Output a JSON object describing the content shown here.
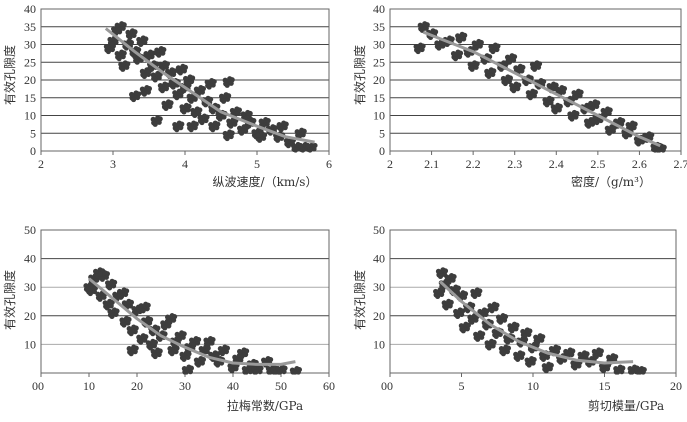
{
  "chart_data": [
    {
      "type": "scatter",
      "xlabel": "纵波速度/（km/s）",
      "ylabel": "有效孔隙度",
      "xlim": [
        2,
        6
      ],
      "ylim": [
        0,
        40
      ],
      "xticks": [
        "2",
        "3",
        "4",
        "5",
        "6"
      ],
      "yticks": [
        "0",
        "5",
        "10",
        "15",
        "20",
        "25",
        "30",
        "35",
        "40"
      ],
      "grid": true,
      "trend": [
        [
          2.9,
          34.5
        ],
        [
          3.3,
          28
        ],
        [
          3.7,
          22
        ],
        [
          4.1,
          16.5
        ],
        [
          4.5,
          11
        ],
        [
          5,
          7
        ],
        [
          5.4,
          4
        ],
        [
          5.8,
          2.5
        ]
      ],
      "points": [
        [
          2.95,
          29
        ],
        [
          3.0,
          31
        ],
        [
          3.05,
          34
        ],
        [
          3.1,
          35
        ],
        [
          3.1,
          27
        ],
        [
          3.15,
          24
        ],
        [
          3.2,
          30
        ],
        [
          3.25,
          33
        ],
        [
          3.3,
          15.5
        ],
        [
          3.3,
          28
        ],
        [
          3.35,
          26
        ],
        [
          3.4,
          31
        ],
        [
          3.45,
          17
        ],
        [
          3.45,
          22
        ],
        [
          3.5,
          27
        ],
        [
          3.55,
          24
        ],
        [
          3.6,
          8.5
        ],
        [
          3.6,
          21
        ],
        [
          3.65,
          28
        ],
        [
          3.7,
          18
        ],
        [
          3.7,
          24
        ],
        [
          3.75,
          13
        ],
        [
          3.8,
          22
        ],
        [
          3.85,
          19
        ],
        [
          3.9,
          7
        ],
        [
          3.9,
          16
        ],
        [
          3.95,
          23
        ],
        [
          4.0,
          12
        ],
        [
          4.0,
          18
        ],
        [
          4.05,
          20
        ],
        [
          4.1,
          7
        ],
        [
          4.1,
          15
        ],
        [
          4.15,
          11
        ],
        [
          4.2,
          17
        ],
        [
          4.25,
          9
        ],
        [
          4.3,
          14
        ],
        [
          4.35,
          19
        ],
        [
          4.4,
          7
        ],
        [
          4.4,
          12
        ],
        [
          4.5,
          10
        ],
        [
          4.55,
          15
        ],
        [
          4.6,
          19.5
        ],
        [
          4.6,
          4.5
        ],
        [
          4.65,
          8
        ],
        [
          4.7,
          11
        ],
        [
          4.8,
          6
        ],
        [
          4.85,
          10
        ],
        [
          4.9,
          8
        ],
        [
          5.0,
          5
        ],
        [
          5.05,
          4
        ],
        [
          5.1,
          8
        ],
        [
          5.2,
          6
        ],
        [
          5.3,
          4
        ],
        [
          5.35,
          7
        ],
        [
          5.45,
          2.5
        ],
        [
          5.55,
          1
        ],
        [
          5.6,
          5
        ],
        [
          5.65,
          1
        ],
        [
          5.75,
          1
        ]
      ]
    },
    {
      "type": "scatter",
      "xlabel": "密度/（g/m³）",
      "ylabel": "有效孔隙度",
      "xlim": [
        2,
        2.7
      ],
      "ylim": [
        0,
        40
      ],
      "xticks": [
        "2",
        "2.1",
        "2.2",
        "2.3",
        "2.4",
        "2.5",
        "2.6",
        "2.7"
      ],
      "yticks": [
        "0",
        "5",
        "10",
        "15",
        "20",
        "25",
        "30",
        "35",
        "40"
      ],
      "grid": true,
      "trend": [
        [
          2.08,
          33.5
        ],
        [
          2.2,
          28
        ],
        [
          2.3,
          22
        ],
        [
          2.4,
          16
        ],
        [
          2.5,
          10
        ],
        [
          2.6,
          4
        ],
        [
          2.65,
          1.5
        ]
      ],
      "points": [
        [
          2.07,
          29
        ],
        [
          2.08,
          35
        ],
        [
          2.1,
          33
        ],
        [
          2.12,
          30
        ],
        [
          2.14,
          31
        ],
        [
          2.16,
          27
        ],
        [
          2.17,
          32
        ],
        [
          2.19,
          28
        ],
        [
          2.2,
          24
        ],
        [
          2.21,
          30
        ],
        [
          2.23,
          26
        ],
        [
          2.24,
          22
        ],
        [
          2.25,
          29
        ],
        [
          2.27,
          24
        ],
        [
          2.28,
          20
        ],
        [
          2.29,
          26
        ],
        [
          2.3,
          18
        ],
        [
          2.31,
          23
        ],
        [
          2.33,
          20
        ],
        [
          2.34,
          16
        ],
        [
          2.35,
          24
        ],
        [
          2.36,
          19
        ],
        [
          2.38,
          14
        ],
        [
          2.39,
          18
        ],
        [
          2.4,
          12
        ],
        [
          2.41,
          17
        ],
        [
          2.43,
          14
        ],
        [
          2.44,
          10
        ],
        [
          2.45,
          16
        ],
        [
          2.47,
          12
        ],
        [
          2.48,
          8
        ],
        [
          2.49,
          13
        ],
        [
          2.5,
          9
        ],
        [
          2.52,
          11
        ],
        [
          2.53,
          6
        ],
        [
          2.55,
          8
        ],
        [
          2.57,
          5
        ],
        [
          2.58,
          7
        ],
        [
          2.6,
          3
        ],
        [
          2.62,
          4
        ],
        [
          2.64,
          1
        ],
        [
          2.65,
          0.5
        ]
      ]
    },
    {
      "type": "scatter",
      "xlabel": "拉梅常数/GPa",
      "ylabel": "有效孔隙度",
      "xlim": [
        0,
        60
      ],
      "ylim": [
        0,
        50
      ],
      "xticks": [
        "0",
        "10",
        "20",
        "30",
        "40",
        "50",
        "60"
      ],
      "yticks": [
        "10",
        "20",
        "30",
        "40",
        "50"
      ],
      "grid": true,
      "trend": [
        [
          10,
          33
        ],
        [
          15,
          26
        ],
        [
          20,
          19
        ],
        [
          25,
          13
        ],
        [
          30,
          9
        ],
        [
          35,
          5.5
        ],
        [
          40,
          3.5
        ],
        [
          45,
          3
        ],
        [
          50,
          3
        ],
        [
          53,
          4
        ]
      ],
      "points": [
        [
          10,
          30
        ],
        [
          10.5,
          29
        ],
        [
          11,
          33
        ],
        [
          12,
          35
        ],
        [
          12.5,
          27
        ],
        [
          13,
          34
        ],
        [
          14,
          24
        ],
        [
          14.5,
          31
        ],
        [
          15,
          21
        ],
        [
          16,
          27
        ],
        [
          17,
          28
        ],
        [
          17.5,
          18
        ],
        [
          18,
          24
        ],
        [
          19,
          8
        ],
        [
          19,
          15
        ],
        [
          20,
          22
        ],
        [
          21,
          12
        ],
        [
          21.5,
          23
        ],
        [
          22,
          18
        ],
        [
          23,
          10
        ],
        [
          23.5,
          15
        ],
        [
          24,
          7
        ],
        [
          25,
          13
        ],
        [
          26,
          17
        ],
        [
          27,
          19
        ],
        [
          27.5,
          8
        ],
        [
          28,
          11
        ],
        [
          29,
          13
        ],
        [
          30,
          6
        ],
        [
          30.5,
          1
        ],
        [
          31,
          9
        ],
        [
          32,
          11
        ],
        [
          33,
          4
        ],
        [
          34,
          8
        ],
        [
          35,
          11
        ],
        [
          36,
          6
        ],
        [
          37,
          4
        ],
        [
          38,
          8
        ],
        [
          40,
          2
        ],
        [
          41,
          5
        ],
        [
          42,
          7
        ],
        [
          43,
          1
        ],
        [
          44,
          3
        ],
        [
          45,
          1
        ],
        [
          47,
          4
        ],
        [
          48,
          1
        ],
        [
          49,
          0.5
        ],
        [
          50,
          1
        ],
        [
          53,
          0.5
        ]
      ]
    },
    {
      "type": "scatter",
      "xlabel": "剪切模量/GPa",
      "ylabel": "有效孔隙度",
      "xlim": [
        0,
        20
      ],
      "ylim": [
        0,
        50
      ],
      "xticks": [
        "0",
        "5",
        "10",
        "15",
        "20"
      ],
      "yticks": [
        "10",
        "20",
        "30",
        "40",
        "50"
      ],
      "grid": true,
      "trend": [
        [
          3.5,
          32
        ],
        [
          5,
          25
        ],
        [
          7,
          17
        ],
        [
          9,
          11
        ],
        [
          11,
          7
        ],
        [
          13,
          4.5
        ],
        [
          15,
          3.5
        ],
        [
          17,
          4
        ]
      ],
      "points": [
        [
          3.4,
          28
        ],
        [
          3.6,
          35
        ],
        [
          3.8,
          31
        ],
        [
          4,
          24
        ],
        [
          4.2,
          33
        ],
        [
          4.5,
          29
        ],
        [
          4.8,
          21
        ],
        [
          5,
          27
        ],
        [
          5.2,
          16
        ],
        [
          5.5,
          23
        ],
        [
          5.8,
          19
        ],
        [
          6,
          28
        ],
        [
          6.2,
          13
        ],
        [
          6.5,
          21
        ],
        [
          6.8,
          17
        ],
        [
          7,
          10
        ],
        [
          7.2,
          23
        ],
        [
          7.5,
          14
        ],
        [
          7.8,
          19
        ],
        [
          8,
          8
        ],
        [
          8.3,
          12
        ],
        [
          8.6,
          16
        ],
        [
          9,
          6
        ],
        [
          9.2,
          11
        ],
        [
          9.5,
          14
        ],
        [
          9.8,
          4
        ],
        [
          10,
          9
        ],
        [
          10.4,
          12
        ],
        [
          10.8,
          6
        ],
        [
          11,
          2
        ],
        [
          11.5,
          8
        ],
        [
          12,
          5
        ],
        [
          12.5,
          7
        ],
        [
          13,
          3
        ],
        [
          13.5,
          6
        ],
        [
          14,
          4
        ],
        [
          14.5,
          7
        ],
        [
          15,
          2
        ],
        [
          15.5,
          5
        ],
        [
          16,
          1
        ],
        [
          17,
          1
        ],
        [
          17.5,
          0.5
        ]
      ]
    }
  ]
}
